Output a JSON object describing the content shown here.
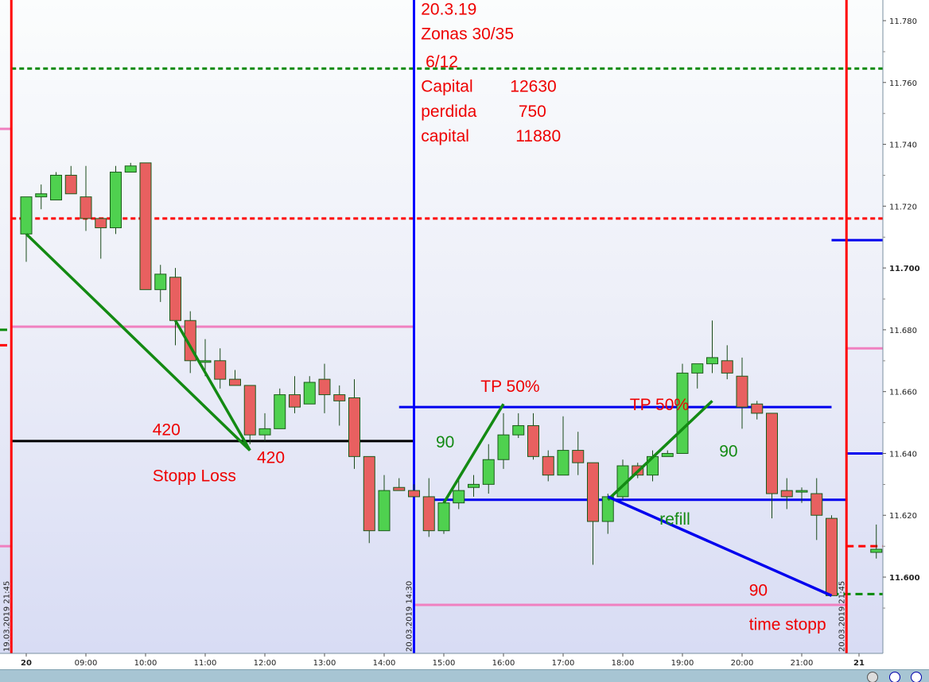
{
  "chart_data": {
    "type": "candlestick",
    "ylim": [
      11.585,
      11.795
    ],
    "y_ticks": [
      "11.600",
      "11.620",
      "11.640",
      "11.660",
      "11.680",
      "11.700",
      "11.720",
      "11.740",
      "11.760",
      "11.780"
    ],
    "y_ticks_bold": [
      "11.600",
      "11.700"
    ],
    "x_ticks": [
      {
        "label": "20",
        "time": "08:00",
        "bold": true
      },
      {
        "label": "09:00",
        "time": "09:00"
      },
      {
        "label": "10:00",
        "time": "10:00"
      },
      {
        "label": "11:00",
        "time": "11:00"
      },
      {
        "label": "12:00",
        "time": "12:00"
      },
      {
        "label": "13:00",
        "time": "13:00"
      },
      {
        "label": "14:00",
        "time": "14:00"
      },
      {
        "label": "15:00",
        "time": "15:00"
      },
      {
        "label": "16:00",
        "time": "16:00"
      },
      {
        "label": "17:00",
        "time": "17:00"
      },
      {
        "label": "18:00",
        "time": "18:00"
      },
      {
        "label": "19:00",
        "time": "19:00"
      },
      {
        "label": "20:00",
        "time": "20:00"
      },
      {
        "label": "21:00",
        "time": "21:00"
      },
      {
        "label": "21",
        "time": "22:15",
        "bold": true
      }
    ],
    "colors": {
      "up": "#4fd14f",
      "down": "#e86060",
      "candle_border": "#1a5a1a"
    },
    "candles_ohlc": [
      [
        "08:00",
        11.711,
        11.723,
        11.702,
        11.723
      ],
      [
        "08:15",
        11.723,
        11.727,
        11.719,
        11.724
      ],
      [
        "08:30",
        11.722,
        11.731,
        11.722,
        11.73
      ],
      [
        "08:45",
        11.73,
        11.733,
        11.724,
        11.724
      ],
      [
        "09:00",
        11.723,
        11.733,
        11.712,
        11.716
      ],
      [
        "09:15",
        11.716,
        11.716,
        11.703,
        11.713
      ],
      [
        "09:30",
        11.713,
        11.733,
        11.711,
        11.731
      ],
      [
        "09:45",
        11.731,
        11.734,
        11.731,
        11.733
      ],
      [
        "10:00",
        11.734,
        11.734,
        11.694,
        11.693
      ],
      [
        "10:15",
        11.693,
        11.701,
        11.689,
        11.698
      ],
      [
        "10:30",
        11.697,
        11.7,
        11.675,
        11.683
      ],
      [
        "10:45",
        11.683,
        11.686,
        11.666,
        11.67
      ],
      [
        "11:00",
        11.67,
        11.677,
        11.665,
        11.67
      ],
      [
        "11:15",
        11.67,
        11.674,
        11.661,
        11.664
      ],
      [
        "11:30",
        11.664,
        11.667,
        11.662,
        11.662
      ],
      [
        "11:45",
        11.662,
        11.662,
        11.643,
        11.646
      ],
      [
        "12:00",
        11.646,
        11.653,
        11.644,
        11.648
      ],
      [
        "12:15",
        11.648,
        11.661,
        11.648,
        11.659
      ],
      [
        "12:30",
        11.659,
        11.665,
        11.653,
        11.655
      ],
      [
        "12:45",
        11.656,
        11.665,
        11.656,
        11.663
      ],
      [
        "13:00",
        11.664,
        11.669,
        11.653,
        11.659
      ],
      [
        "13:15",
        11.659,
        11.662,
        11.649,
        11.657
      ],
      [
        "13:30",
        11.658,
        11.664,
        11.635,
        11.639
      ],
      [
        "13:45",
        11.639,
        11.639,
        11.611,
        11.615
      ],
      [
        "14:00",
        11.615,
        11.633,
        11.615,
        11.628
      ],
      [
        "14:15",
        11.629,
        11.632,
        11.628,
        11.628
      ],
      [
        "14:30",
        11.628,
        11.63,
        11.626,
        11.626
      ],
      [
        "14:45",
        11.626,
        11.632,
        11.613,
        11.615
      ],
      [
        "15:00",
        11.615,
        11.625,
        11.614,
        11.624
      ],
      [
        "15:15",
        11.624,
        11.632,
        11.622,
        11.628
      ],
      [
        "15:30",
        11.629,
        11.633,
        11.626,
        11.63
      ],
      [
        "15:45",
        11.63,
        11.643,
        11.627,
        11.638
      ],
      [
        "16:00",
        11.638,
        11.653,
        11.635,
        11.646
      ],
      [
        "16:15",
        11.646,
        11.653,
        11.645,
        11.649
      ],
      [
        "16:30",
        11.649,
        11.653,
        11.638,
        11.639
      ],
      [
        "16:45",
        11.639,
        11.641,
        11.631,
        11.633
      ],
      [
        "17:00",
        11.633,
        11.652,
        11.633,
        11.641
      ],
      [
        "17:15",
        11.641,
        11.647,
        11.633,
        11.637
      ],
      [
        "17:30",
        11.637,
        11.637,
        11.604,
        11.618
      ],
      [
        "17:45",
        11.618,
        11.627,
        11.614,
        11.626
      ],
      [
        "18:00",
        11.626,
        11.638,
        11.625,
        11.636
      ],
      [
        "18:15",
        11.636,
        11.637,
        11.632,
        11.633
      ],
      [
        "18:30",
        11.633,
        11.641,
        11.631,
        11.639
      ],
      [
        "18:45",
        11.639,
        11.641,
        11.639,
        11.64
      ],
      [
        "19:00",
        11.64,
        11.669,
        11.64,
        11.666
      ],
      [
        "19:15",
        11.666,
        11.668,
        11.661,
        11.669
      ],
      [
        "19:30",
        11.669,
        11.683,
        11.666,
        11.671
      ],
      [
        "19:45",
        11.67,
        11.675,
        11.664,
        11.666
      ],
      [
        "20:00",
        11.665,
        11.671,
        11.648,
        11.655
      ],
      [
        "20:15",
        11.656,
        11.657,
        11.651,
        11.653
      ],
      [
        "20:30",
        11.653,
        11.653,
        11.619,
        11.627
      ],
      [
        "20:45",
        11.628,
        11.632,
        11.622,
        11.626
      ],
      [
        "21:00",
        11.628,
        11.629,
        11.624,
        11.628
      ],
      [
        "21:15",
        11.627,
        11.632,
        11.612,
        11.62
      ],
      [
        "21:30",
        11.619,
        11.62,
        11.594,
        11.594
      ],
      [
        "22:15",
        11.608,
        11.617,
        11.606,
        11.609
      ],
      [
        "22:30",
        11.608,
        11.612,
        11.594,
        11.594
      ]
    ],
    "vertical_lines": [
      {
        "label": "19.03.2019 21:45",
        "time": "07:45",
        "color": "#ff0000"
      },
      {
        "label": "20.03.2019 14:30",
        "time": "14:30",
        "color": "#0000ff"
      },
      {
        "label": "20.03.2019 21:45",
        "time": "21:45",
        "color": "#ff0000"
      }
    ],
    "horizontal_lines": [
      {
        "price": 11.7645,
        "from": "07:45",
        "to": "22:30",
        "color": "#0a8a0a",
        "style": "dotted"
      },
      {
        "price": 11.716,
        "from": "07:45",
        "to": "22:30",
        "color": "#ff0000",
        "style": "dotted"
      },
      {
        "price": 11.681,
        "from": "07:45",
        "to": "14:30",
        "color": "#f080c0",
        "style": "solid"
      },
      {
        "price": 11.644,
        "from": "07:45",
        "to": "14:30",
        "color": "#000000",
        "style": "solid"
      },
      {
        "price": 11.655,
        "from": "14:15",
        "to": "21:30",
        "color": "#0000ee",
        "style": "solid"
      },
      {
        "price": 11.625,
        "from": "14:45",
        "to": "21:45",
        "color": "#0000ee",
        "style": "solid"
      },
      {
        "price": 11.591,
        "from": "14:30",
        "to": "21:45",
        "color": "#f080c0",
        "style": "solid"
      },
      {
        "price": 11.709,
        "from": "21:30",
        "to": "23:00",
        "color": "#0000ee",
        "style": "solid"
      },
      {
        "price": 11.674,
        "from": "21:45",
        "to": "23:00",
        "color": "#f080c0",
        "style": "solid"
      },
      {
        "price": 11.64,
        "from": "21:45",
        "to": "23:00",
        "color": "#0000ee",
        "style": "solid"
      },
      {
        "price": 11.61,
        "from": "21:45",
        "to": "23:00",
        "color": "#ff0000",
        "style": "dashed"
      },
      {
        "price": 11.5945,
        "from": "21:30",
        "to": "23:00",
        "color": "#0a8a0a",
        "style": "dashed"
      },
      {
        "price": 11.745,
        "from": "07:15",
        "to": "07:45",
        "color": "#f080c0",
        "style": "solid"
      },
      {
        "price": 11.61,
        "from": "07:15",
        "to": "07:45",
        "color": "#f080c0",
        "style": "solid"
      },
      {
        "price": 11.68,
        "from": "07:15",
        "to": "07:45",
        "color": "#0a8a0a",
        "style": "dashed"
      },
      {
        "price": 11.675,
        "from": "07:15",
        "to": "07:45",
        "color": "#ff0000",
        "style": "dashed"
      }
    ],
    "trend_lines": [
      {
        "from": [
          "08:00",
          11.711
        ],
        "to": [
          "11:45",
          11.641
        ],
        "color": "#138a13"
      },
      {
        "from": [
          "10:30",
          11.683
        ],
        "to": [
          "11:45",
          11.641
        ],
        "color": "#138a13"
      },
      {
        "from": [
          "15:00",
          11.624
        ],
        "to": [
          "16:00",
          11.656
        ],
        "color": "#138a13"
      },
      {
        "from": [
          "17:45",
          11.625
        ],
        "to": [
          "19:30",
          11.657
        ],
        "color": "#138a13"
      },
      {
        "from": [
          "17:45",
          11.626
        ],
        "to": [
          "21:30",
          11.594
        ],
        "color": "#0000ee"
      }
    ],
    "annotations": [
      {
        "text": "20.3.19",
        "time": "14:45",
        "price": 11.784,
        "color": "#ee0000"
      },
      {
        "text": "Zonas 30/35",
        "time": "14:45",
        "price": 11.776,
        "color": "#ee0000"
      },
      {
        "text": " 6/12",
        "time": "14:45",
        "price": 11.767,
        "color": "#ee0000"
      },
      {
        "text": "Capital        12630",
        "time": "14:45",
        "price": 11.759,
        "color": "#ee0000"
      },
      {
        "text": "perdida         750",
        "time": "14:45",
        "price": 11.751,
        "color": "#ee0000"
      },
      {
        "text": "capital          11880",
        "time": "14:45",
        "price": 11.743,
        "color": "#ee0000"
      },
      {
        "text": "TP 50%",
        "time": "15:45",
        "price": 11.662,
        "color": "#ee0000"
      },
      {
        "text": "TP 50%",
        "time": "18:15",
        "price": 11.656,
        "color": "#ee0000"
      },
      {
        "text": "420",
        "time": "10:15",
        "price": 11.648,
        "color": "#ee0000"
      },
      {
        "text": "420",
        "time": "12:00",
        "price": 11.639,
        "color": "#ee0000"
      },
      {
        "text": "Stopp Loss",
        "time": "10:15",
        "price": 11.633,
        "color": "#ee0000"
      },
      {
        "text": "90",
        "time": "15:00",
        "price": 11.644,
        "color": "#138a13"
      },
      {
        "text": "90",
        "time": "19:45",
        "price": 11.641,
        "color": "#138a13"
      },
      {
        "text": "refill",
        "time": "18:45",
        "price": 11.619,
        "color": "#138a13"
      },
      {
        "text": "90",
        "time": "20:15",
        "price": 11.596,
        "color": "#ee0000"
      },
      {
        "text": "time stopp",
        "time": "20:15",
        "price": 11.585,
        "color": "#ee0000"
      }
    ]
  }
}
